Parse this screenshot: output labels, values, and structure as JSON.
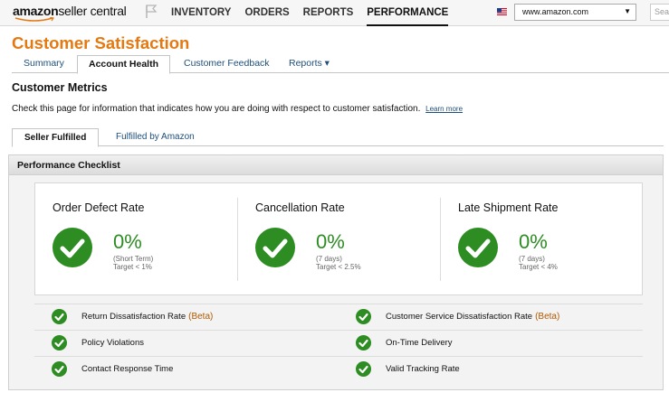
{
  "header": {
    "logo_main": "amazon",
    "logo_sub": "seller central",
    "nav": [
      "INVENTORY",
      "ORDERS",
      "REPORTS",
      "PERFORMANCE"
    ],
    "active_nav": "PERFORMANCE",
    "site_selector": "www.amazon.com",
    "search_placeholder": "Sea"
  },
  "page": {
    "title": "Customer Satisfaction",
    "tabs": [
      "Summary",
      "Account Health",
      "Customer Feedback",
      "Reports ▾"
    ],
    "active_tab": "Account Health",
    "section_heading": "Customer Metrics",
    "intro_text": "Check this page for information that indicates how you are doing with respect to customer satisfaction.",
    "learn_more": "Learn more",
    "subtabs": [
      "Seller Fulfilled",
      "Fulfilled by Amazon"
    ],
    "active_subtab": "Seller Fulfilled"
  },
  "checklist": {
    "title": "Performance Checklist",
    "metrics": [
      {
        "title": "Order Defect Rate",
        "value": "0%",
        "period": "(Short Term)",
        "target": "Target < 1%"
      },
      {
        "title": "Cancellation Rate",
        "value": "0%",
        "period": "(7 days)",
        "target": "Target < 2.5%"
      },
      {
        "title": "Late Shipment Rate",
        "value": "0%",
        "period": "(7 days)",
        "target": "Target < 4%"
      }
    ],
    "items": [
      {
        "label": "Return Dissatisfaction Rate",
        "beta": "(Beta)"
      },
      {
        "label": "Customer Service Dissatisfaction Rate",
        "beta": "(Beta)"
      },
      {
        "label": "Policy Violations",
        "beta": ""
      },
      {
        "label": "On-Time Delivery",
        "beta": ""
      },
      {
        "label": "Contact Response Time",
        "beta": ""
      },
      {
        "label": "Valid Tracking Rate",
        "beta": ""
      }
    ]
  },
  "colors": {
    "brand_orange": "#e47911",
    "success_green": "#2d8c22",
    "link_blue": "#1e4e79"
  }
}
